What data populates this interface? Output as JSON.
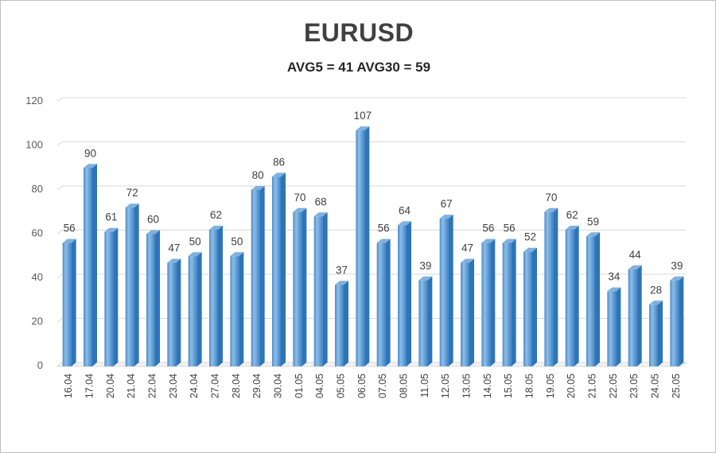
{
  "chart_data": {
    "type": "bar",
    "title": "EURUSD",
    "subtitle": "AVG5 = 41 AVG30 = 59",
    "xlabel": "",
    "ylabel": "",
    "ylim": [
      0,
      120
    ],
    "yticks": [
      0,
      20,
      40,
      60,
      80,
      100,
      120
    ],
    "grid": true,
    "legend": "none",
    "categories": [
      "16.04",
      "17.04",
      "20.04",
      "21.04",
      "22.04",
      "23.04",
      "24.04",
      "27.04",
      "28.04",
      "29.04",
      "30.04",
      "01.05",
      "04.05",
      "05.05",
      "06.05",
      "07.05",
      "08.05",
      "11.05",
      "12.05",
      "13.05",
      "14.05",
      "15.05",
      "18.05",
      "19.05",
      "20.05",
      "21.05",
      "22.05",
      "23.05",
      "24.05",
      "25.05"
    ],
    "values": [
      56,
      90,
      61,
      72,
      60,
      47,
      50,
      62,
      50,
      80,
      86,
      70,
      68,
      37,
      107,
      56,
      64,
      39,
      67,
      47,
      56,
      56,
      52,
      70,
      62,
      59,
      34,
      44,
      28,
      39
    ],
    "colors": {
      "bar_front": "#5b9bd5",
      "bar_light": "#8fbde6",
      "bar_dark": "#2e75b6",
      "bar_top": "#7fb1de",
      "grid": "#d9d9d9"
    }
  }
}
